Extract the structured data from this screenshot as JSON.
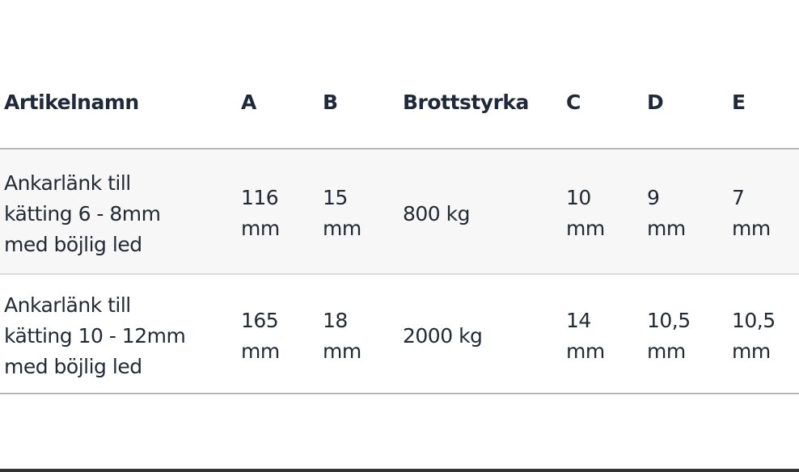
{
  "table": {
    "headers": [
      "Artikelnamn",
      "A",
      "B",
      "Brottstyrka",
      "C",
      "D",
      "E"
    ],
    "rows": [
      {
        "name_lines": [
          "Ankarlänk till",
          "kätting 6 - 8mm",
          "med böjlig led"
        ],
        "a": [
          "116",
          "mm"
        ],
        "b": [
          "15",
          "mm"
        ],
        "brottstyrka": "800 kg",
        "c": [
          "10",
          "mm"
        ],
        "d": [
          "9",
          "mm"
        ],
        "e": [
          "7",
          "mm"
        ]
      },
      {
        "name_lines": [
          "Ankarlänk till",
          "kätting 10 - 12mm",
          "med böjlig led"
        ],
        "a": [
          "165",
          "mm"
        ],
        "b": [
          "18",
          "mm"
        ],
        "brottstyrka": "2000 kg",
        "c": [
          "14",
          "mm"
        ],
        "d": [
          "10,5",
          "mm"
        ],
        "e": [
          "10,5",
          "mm"
        ]
      }
    ]
  }
}
